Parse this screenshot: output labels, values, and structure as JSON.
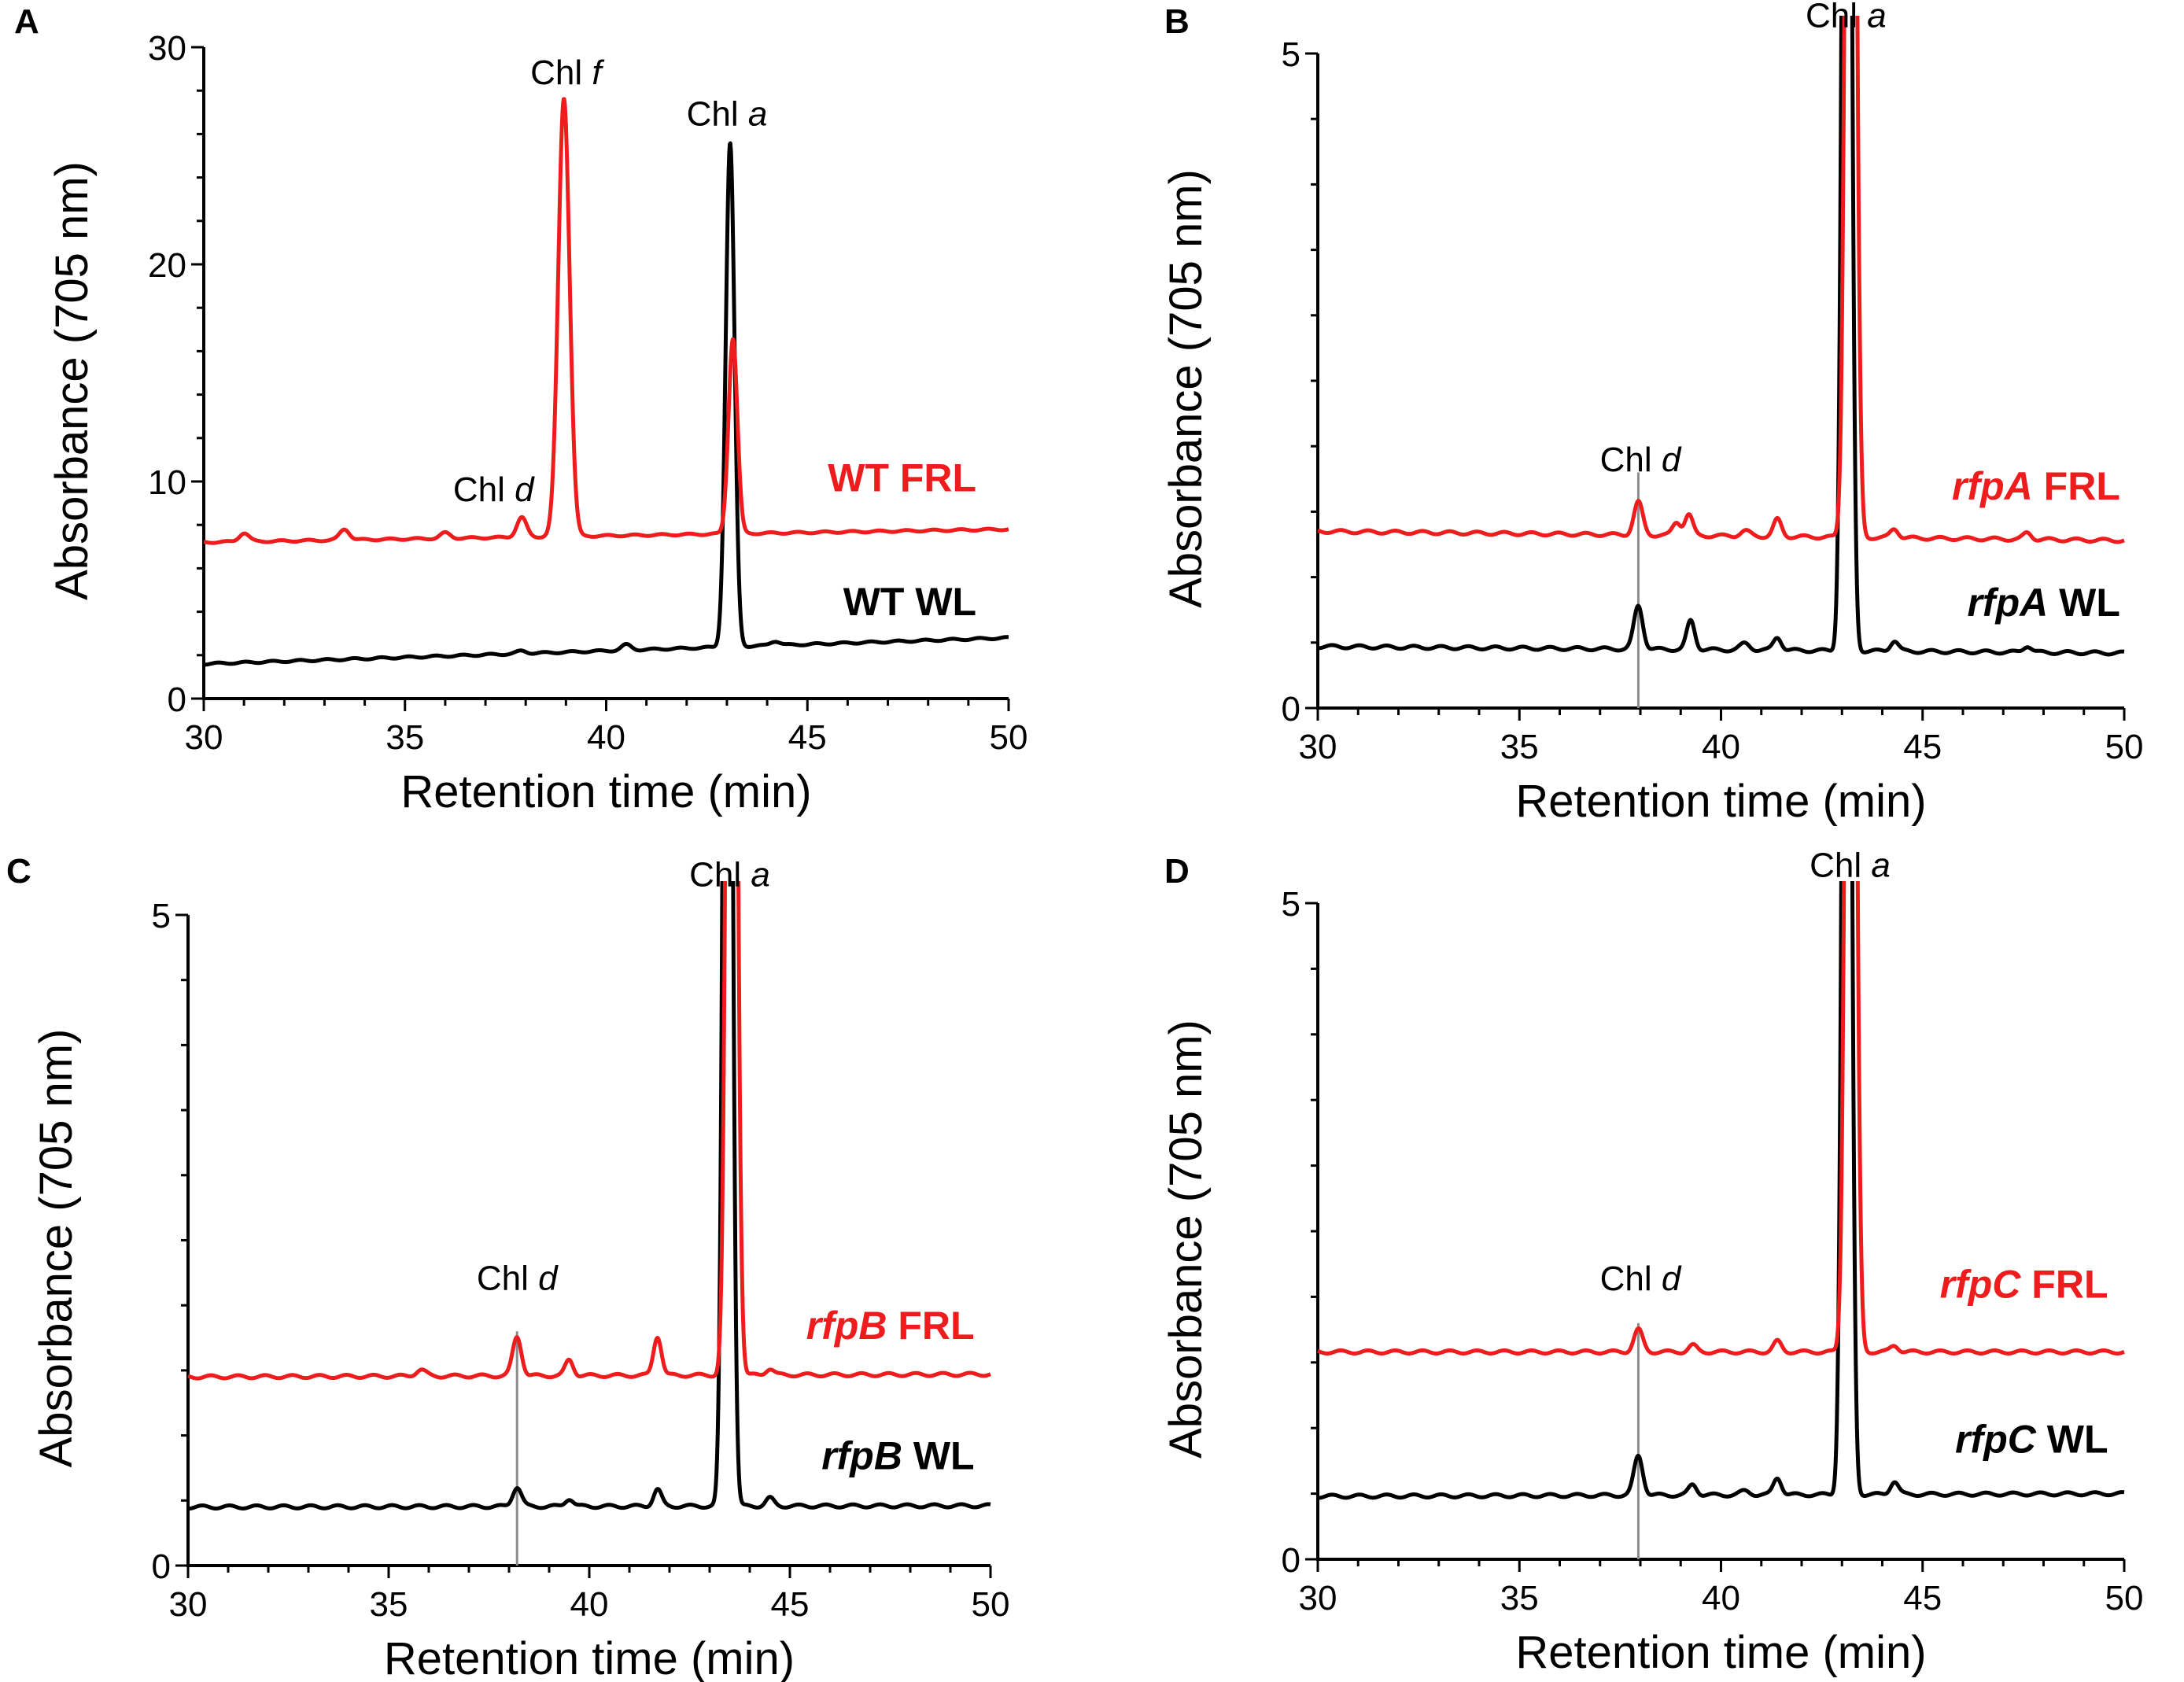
{
  "colors": {
    "frl": "#ee1c1c",
    "wl": "#000000",
    "guide": "#8c8c8c"
  },
  "chart_data": [
    {
      "type": "line",
      "panel": "A",
      "xlabel": "Retention time (min)",
      "ylabel": "Absorbance (705 nm)",
      "xlim": [
        30,
        50
      ],
      "ylim": [
        0,
        30
      ],
      "xticks": [
        "30",
        "35",
        "40",
        "45",
        "50"
      ],
      "yticks": [
        "0",
        "10",
        "20",
        "30"
      ],
      "x_tick_values": [
        30,
        35,
        40,
        45,
        50
      ],
      "y_tick_values": [
        0,
        10,
        20,
        30
      ],
      "marker_x": null,
      "series": [
        {
          "name": "WT FRL",
          "name_italic": "",
          "name_rest": "WT FRL",
          "color": "#ee1c1c",
          "baseline_start": 7.2,
          "baseline_end": 7.8,
          "peaks": [
            [
              31.0,
              0.4,
              0.12
            ],
            [
              33.5,
              0.5,
              0.12
            ],
            [
              36.0,
              0.25,
              0.12
            ],
            [
              37.9,
              0.9,
              0.12
            ],
            [
              38.95,
              20.2,
              0.14
            ],
            [
              43.15,
              9.0,
              0.11
            ]
          ],
          "label_value": 10.2,
          "label_x": 49.2
        },
        {
          "name": "WT WL",
          "name_italic": "",
          "name_rest": "WT WL",
          "color": "#000000",
          "baseline_start": 1.6,
          "baseline_end": 2.8,
          "peaks": [
            [
              37.9,
              0.12,
              0.12
            ],
            [
              40.5,
              0.25,
              0.12
            ],
            [
              43.08,
              23.2,
              0.11
            ],
            [
              44.2,
              0.2,
              0.12
            ]
          ],
          "label_value": 4.5,
          "label_x": 49.2
        }
      ],
      "annotations": [
        {
          "x": 37.2,
          "y": 9.1,
          "chl": "Chl ",
          "letter": "d"
        },
        {
          "x": 39.0,
          "y": 28.3,
          "chl": "Chl ",
          "letter": "f"
        },
        {
          "x": 43.0,
          "y": 26.4,
          "chl": "Chl ",
          "letter": "a"
        }
      ]
    },
    {
      "type": "line",
      "panel": "B",
      "xlabel": "Retention time (min)",
      "ylabel": "Absorbance (705 nm)",
      "xlim": [
        30,
        50
      ],
      "ylim": [
        0,
        5
      ],
      "xticks": [
        "30",
        "35",
        "40",
        "45",
        "50"
      ],
      "yticks": [
        "0",
        "5"
      ],
      "x_tick_values": [
        30,
        35,
        40,
        45,
        50
      ],
      "y_tick_values": [
        0,
        5
      ],
      "marker_x": 37.95,
      "series": [
        {
          "name": "rfpA FRL",
          "name_italic": "rfpA",
          "name_rest": " FRL",
          "color": "#ee1c1c",
          "baseline_start": 1.35,
          "baseline_end": 1.28,
          "peaks": [
            [
              37.95,
              0.25,
              0.11
            ],
            [
              38.9,
              0.1,
              0.1
            ],
            [
              39.2,
              0.16,
              0.1
            ],
            [
              40.6,
              0.04,
              0.12
            ],
            [
              41.4,
              0.13,
              0.1
            ],
            [
              43.22,
              12.0,
              0.11
            ],
            [
              44.3,
              0.07,
              0.1
            ],
            [
              47.6,
              0.05,
              0.1
            ]
          ],
          "label_value": 1.7,
          "label_x": 49.9
        },
        {
          "name": "rfpA WL",
          "name_italic": "rfpA",
          "name_rest": " WL",
          "color": "#000000",
          "baseline_start": 0.47,
          "baseline_end": 0.42,
          "peaks": [
            [
              37.95,
              0.33,
              0.11
            ],
            [
              39.25,
              0.22,
              0.1
            ],
            [
              40.6,
              0.05,
              0.12
            ],
            [
              41.4,
              0.1,
              0.1
            ],
            [
              43.12,
              12.0,
              0.1
            ],
            [
              44.3,
              0.08,
              0.1
            ],
            [
              47.6,
              0.05,
              0.1
            ]
          ],
          "label_value": 0.81,
          "label_x": 49.9
        }
      ],
      "annotations": [
        {
          "x": 38.0,
          "y": 1.81,
          "chl": "Chl ",
          "letter": "d"
        },
        {
          "x": 43.1,
          "y": 5.2,
          "chl": "Chl ",
          "letter": "a"
        }
      ]
    },
    {
      "type": "line",
      "panel": "C",
      "xlabel": "Retention time (min)",
      "ylabel": "Absorbance (705 nm)",
      "xlim": [
        30,
        50
      ],
      "ylim": [
        0,
        5
      ],
      "xticks": [
        "30",
        "35",
        "40",
        "45",
        "50"
      ],
      "yticks": [
        "0",
        "5"
      ],
      "x_tick_values": [
        30,
        35,
        40,
        45,
        50
      ],
      "y_tick_values": [
        0,
        5
      ],
      "marker_x": 38.2,
      "series": [
        {
          "name": "rfpB FRL",
          "name_italic": "rfpB",
          "name_rest": " FRL",
          "color": "#ee1c1c",
          "baseline_start": 1.45,
          "baseline_end": 1.47,
          "peaks": [
            [
              35.8,
              0.05,
              0.12
            ],
            [
              38.2,
              0.3,
              0.11
            ],
            [
              39.5,
              0.12,
              0.1
            ],
            [
              41.7,
              0.3,
              0.1
            ],
            [
              43.55,
              12.0,
              0.11
            ],
            [
              44.5,
              0.05,
              0.1
            ]
          ],
          "label_value": 1.85,
          "label_x": 49.6
        },
        {
          "name": "rfpB WL",
          "name_italic": "rfpB",
          "name_rest": " WL",
          "color": "#000000",
          "baseline_start": 0.45,
          "baseline_end": 0.46,
          "peaks": [
            [
              38.2,
              0.15,
              0.11
            ],
            [
              39.5,
              0.06,
              0.1
            ],
            [
              41.7,
              0.13,
              0.1
            ],
            [
              43.45,
              12.0,
              0.1
            ],
            [
              44.5,
              0.06,
              0.1
            ]
          ],
          "label_value": 0.85,
          "label_x": 49.6
        }
      ],
      "annotations": [
        {
          "x": 38.2,
          "y": 2.12,
          "chl": "Chl ",
          "letter": "d"
        },
        {
          "x": 43.5,
          "y": 5.22,
          "chl": "Chl ",
          "letter": "a"
        }
      ]
    },
    {
      "type": "line",
      "panel": "D",
      "xlabel": "Retention time (min)",
      "ylabel": "Absorbance (705 nm)",
      "xlim": [
        30,
        50
      ],
      "ylim": [
        0,
        5
      ],
      "xticks": [
        "30",
        "35",
        "40",
        "45",
        "50"
      ],
      "yticks": [
        "0",
        "5"
      ],
      "x_tick_values": [
        30,
        35,
        40,
        45,
        50
      ],
      "y_tick_values": [
        0,
        5
      ],
      "marker_x": 37.95,
      "series": [
        {
          "name": "rfpC FRL",
          "name_italic": "rfpC",
          "name_rest": " FRL",
          "color": "#ee1c1c",
          "baseline_start": 1.58,
          "baseline_end": 1.58,
          "peaks": [
            [
              37.95,
              0.17,
              0.11
            ],
            [
              39.3,
              0.05,
              0.1
            ],
            [
              41.4,
              0.08,
              0.1
            ],
            [
              43.22,
              12.0,
              0.11
            ],
            [
              44.3,
              0.05,
              0.1
            ]
          ],
          "label_value": 2.1,
          "label_x": 49.6
        },
        {
          "name": "rfpC WL",
          "name_italic": "rfpC",
          "name_rest": " WL",
          "color": "#000000",
          "baseline_start": 0.48,
          "baseline_end": 0.5,
          "peaks": [
            [
              37.95,
              0.3,
              0.11
            ],
            [
              39.3,
              0.08,
              0.1
            ],
            [
              40.6,
              0.03,
              0.12
            ],
            [
              41.4,
              0.13,
              0.1
            ],
            [
              43.12,
              12.0,
              0.1
            ],
            [
              44.3,
              0.1,
              0.1
            ]
          ],
          "label_value": 0.92,
          "label_x": 49.6
        }
      ],
      "annotations": [
        {
          "x": 38.0,
          "y": 2.05,
          "chl": "Chl ",
          "letter": "d"
        },
        {
          "x": 43.2,
          "y": 5.2,
          "chl": "Chl ",
          "letter": "a"
        }
      ]
    }
  ]
}
